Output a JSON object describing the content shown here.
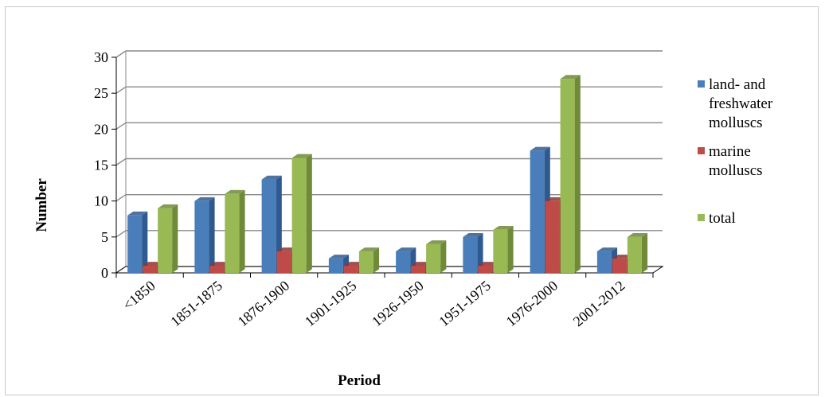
{
  "chart_data": {
    "type": "bar",
    "title": "",
    "xlabel": "Period",
    "ylabel": "Number",
    "ylim": [
      0,
      30
    ],
    "yticks": [
      0,
      5,
      10,
      15,
      20,
      25,
      30
    ],
    "grid": true,
    "legend_position": "right",
    "categories": [
      "<1850",
      "1851-1875",
      "1876-1900",
      "1901-1925",
      "1926-1950",
      "1951-1975",
      "1976-2000",
      "2001-2012"
    ],
    "series": [
      {
        "name": "land- and freshwater molluscs",
        "legend_lines": [
          "land- and",
          "freshwater",
          "molluscs"
        ],
        "color": "#4a7ebb",
        "side": "#2f5a8f",
        "values": [
          8,
          10,
          13,
          2,
          3,
          5,
          17,
          3
        ]
      },
      {
        "name": "marine molluscs",
        "legend_lines": [
          "marine",
          "molluscs"
        ],
        "color": "#be4b48",
        "side": "#8e3230",
        "values": [
          1,
          1,
          3,
          1,
          1,
          1,
          10,
          2
        ]
      },
      {
        "name": "total",
        "legend_lines": [
          "total"
        ],
        "color": "#98b954",
        "side": "#6f8a38",
        "values": [
          9,
          11,
          16,
          3,
          4,
          6,
          27,
          5
        ]
      }
    ]
  }
}
